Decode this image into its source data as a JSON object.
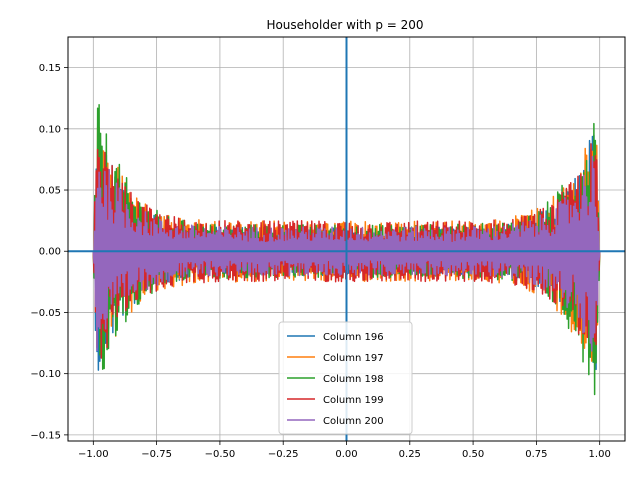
{
  "chart_data": {
    "type": "line",
    "title": "Householder with p = 200",
    "xlabel": "",
    "ylabel": "",
    "xlim": [
      -1.1,
      1.1
    ],
    "ylim": [
      -0.155,
      0.175
    ],
    "grid": true,
    "legend_position": "lower-center",
    "x_ticks": [
      -1.0,
      -0.75,
      -0.5,
      -0.25,
      0.0,
      0.25,
      0.5,
      0.75,
      1.0
    ],
    "x_tick_labels": [
      "−1.00",
      "−0.75",
      "−0.50",
      "−0.25",
      "0.00",
      "0.25",
      "0.50",
      "0.75",
      "1.00"
    ],
    "y_ticks": [
      -0.15,
      -0.1,
      -0.05,
      0.0,
      0.05,
      0.1,
      0.15
    ],
    "y_tick_labels": [
      "−0.15",
      "−0.10",
      "−0.05",
      "0.00",
      "0.05",
      "0.10",
      "0.15"
    ],
    "reference_lines": [
      {
        "orientation": "horizontal",
        "value": 0.0,
        "color": "#1f77b4"
      },
      {
        "orientation": "vertical",
        "value": 0.0,
        "color": "#1f77b4"
      }
    ],
    "x_range": [
      -1.0,
      1.0
    ],
    "series": [
      {
        "name": "Column 196",
        "color": "#1f77b4",
        "center_amplitude": 0.02,
        "edge_amplitude": 0.12
      },
      {
        "name": "Column 197",
        "color": "#ff7f0e",
        "center_amplitude": 0.025,
        "edge_amplitude": 0.13
      },
      {
        "name": "Column 198",
        "color": "#2ca02c",
        "center_amplitude": 0.022,
        "edge_amplitude": 0.14
      },
      {
        "name": "Column 199",
        "color": "#d62728",
        "center_amplitude": 0.025,
        "edge_amplitude": 0.11
      },
      {
        "name": "Column 200",
        "color": "#9467bd",
        "center_amplitude": 0.02,
        "edge_amplitude": 0.1
      }
    ]
  }
}
